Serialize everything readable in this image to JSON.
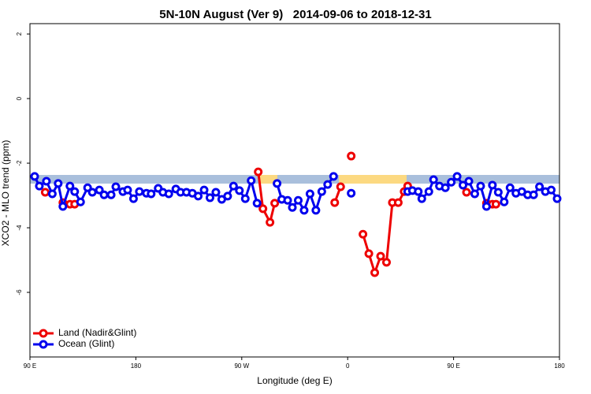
{
  "chart_data": {
    "type": "line",
    "title": "5N-10N August (Ver 9)   2014-09-06 to 2018-12-31",
    "xlabel": "Longitude (deg E)",
    "ylabel": "XCO2 - MLO trend (ppm)",
    "xlim": [
      90,
      540
    ],
    "xticks": [
      {
        "value": 90,
        "label": "90 E"
      },
      180,
      {
        "value": 270,
        "label": "90 W"
      },
      {
        "value": 360,
        "label": "0"
      },
      {
        "value": 450,
        "label": "90 E"
      },
      {
        "value": 540,
        "label": "180"
      }
    ],
    "ylim": [
      -8,
      2.32
    ],
    "yticks": [
      2,
      0,
      -2,
      -4,
      -6
    ],
    "legend": "bottom-left",
    "series": [
      {
        "name": "Land (Nadir&Glint)",
        "color": "#ee0000",
        "x": [
          103,
          110,
          118,
          124,
          128,
          203,
          284,
          288,
          294,
          298,
          328,
          349,
          354,
          357,
          363,
          367,
          373,
          378,
          383,
          388,
          393,
          398,
          403,
          408,
          411,
          440,
          461,
          471,
          478,
          483,
          486
        ],
        "values": [
          -2.9,
          null,
          -3.22,
          -3.27,
          -3.27,
          null,
          -2.27,
          -3.41,
          -3.83,
          -3.24,
          null,
          -3.22,
          -2.73,
          null,
          -1.78,
          null,
          -4.2,
          -4.8,
          -5.39,
          -4.88,
          -5.07,
          -3.22,
          -3.22,
          -2.88,
          -2.71,
          null,
          -2.9,
          null,
          -3.24,
          -3.27,
          -3.27
        ]
      },
      {
        "name": "Ocean (Glint)",
        "color": "#0000ee",
        "x": [
          94,
          98,
          104,
          109,
          114,
          118,
          124,
          128,
          133,
          139,
          143,
          149,
          153,
          159,
          163,
          169,
          173,
          178,
          183,
          189,
          193,
          199,
          203,
          208,
          214,
          218,
          223,
          228,
          233,
          238,
          243,
          248,
          253,
          258,
          263,
          268,
          273,
          278,
          283,
          285,
          300,
          304,
          309,
          313,
          318,
          323,
          328,
          333,
          338,
          343,
          348,
          350,
          363,
          378,
          411,
          415,
          420,
          423,
          429,
          433,
          438,
          443,
          448,
          453,
          458,
          463,
          468,
          473,
          478,
          483,
          488,
          493,
          498,
          503,
          508,
          513,
          518,
          523,
          528,
          533,
          538
        ],
        "values": [
          -2.41,
          -2.71,
          -2.56,
          -2.95,
          -2.63,
          -3.34,
          -2.71,
          -2.88,
          -3.2,
          -2.76,
          -2.9,
          -2.83,
          -2.98,
          -2.98,
          -2.73,
          -2.88,
          -2.83,
          -3.1,
          -2.88,
          -2.93,
          -2.95,
          -2.78,
          -2.9,
          -2.95,
          -2.8,
          -2.9,
          -2.9,
          -2.93,
          -3.02,
          -2.83,
          -3.07,
          -2.9,
          -3.12,
          -3.02,
          -2.71,
          -2.85,
          -3.1,
          -2.54,
          -3.24,
          null,
          -2.63,
          -3.12,
          -3.15,
          -3.37,
          -3.15,
          -3.46,
          -2.95,
          -3.46,
          -2.88,
          -2.66,
          -2.41,
          null,
          -2.93,
          null,
          -2.88,
          -2.85,
          -2.88,
          -3.1,
          -2.88,
          -2.51,
          -2.71,
          -2.76,
          -2.59,
          -2.41,
          -2.68,
          -2.56,
          -2.95,
          -2.71,
          -3.34,
          -2.68,
          -2.9,
          -3.2,
          -2.76,
          -2.93,
          -2.88,
          -2.98,
          -2.98,
          -2.73,
          -2.88,
          -2.83,
          -3.1
        ]
      }
    ]
  }
}
